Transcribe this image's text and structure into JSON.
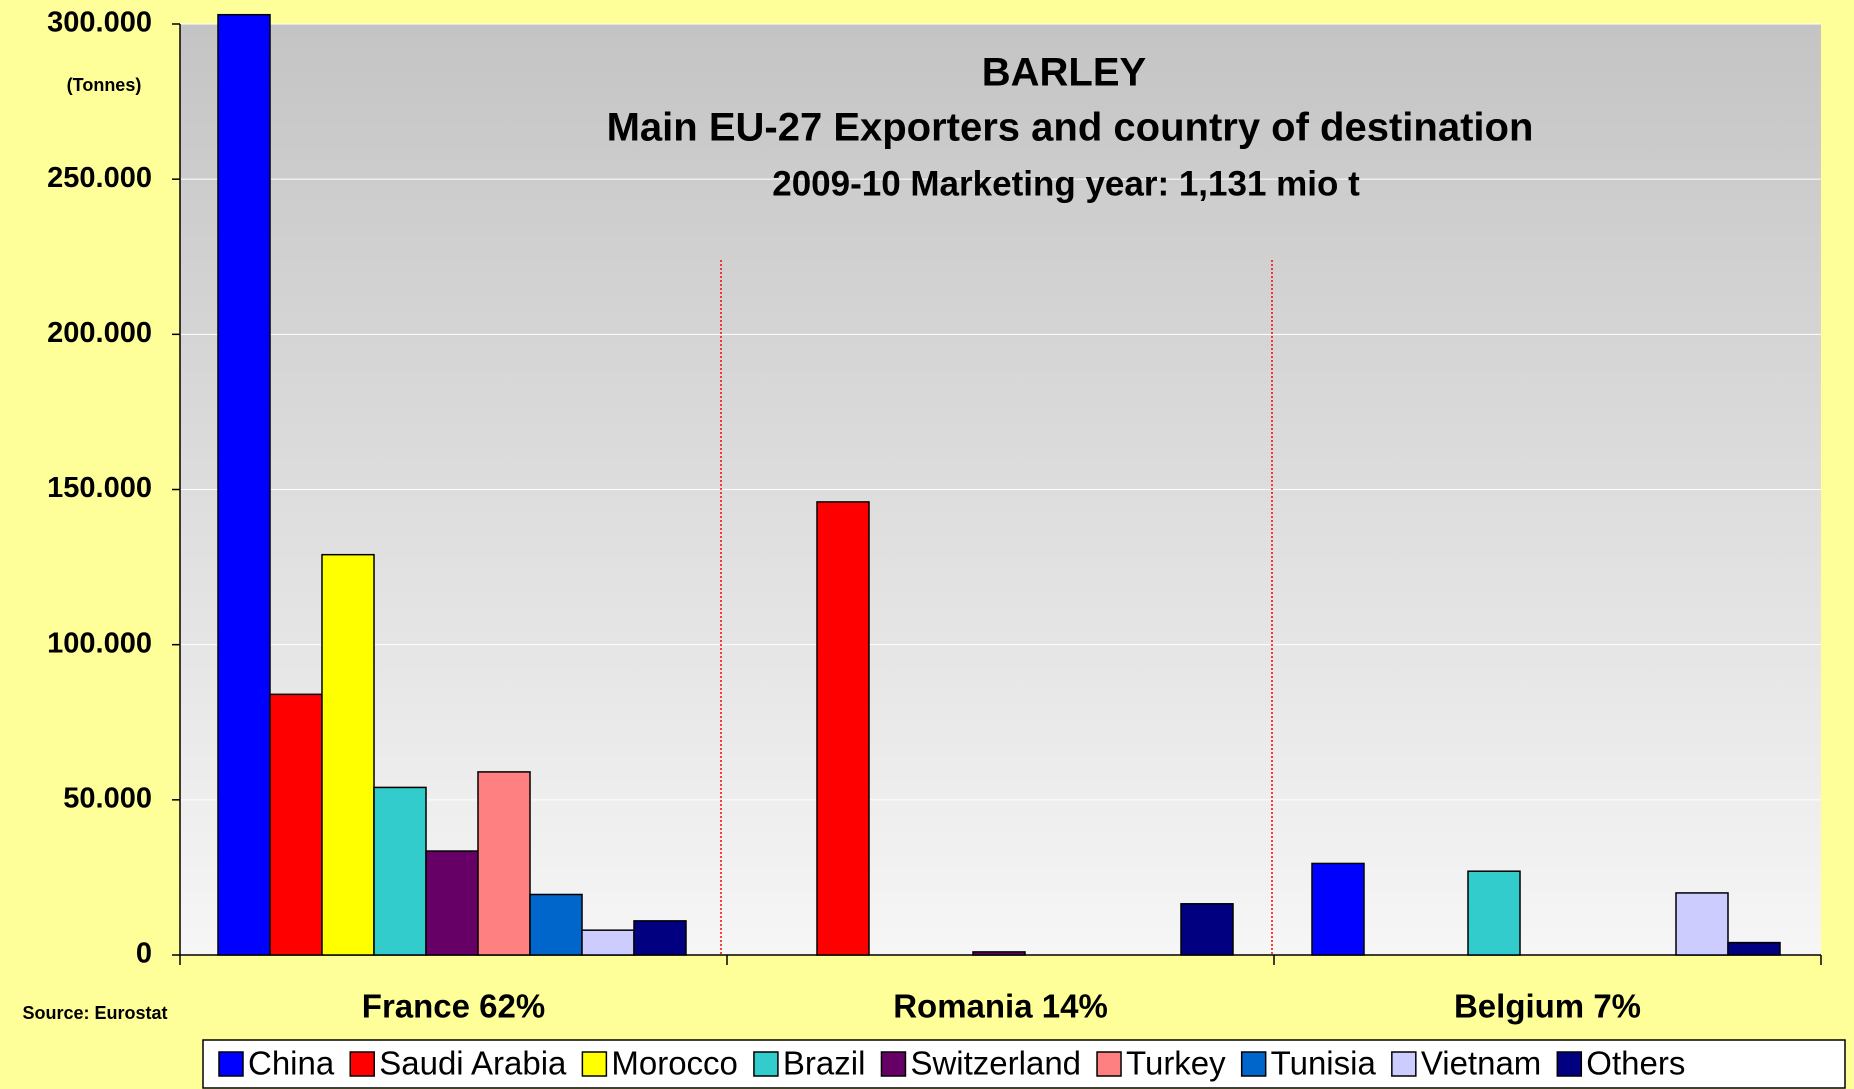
{
  "chart_data": {
    "type": "bar",
    "title": "BARLEY",
    "subtitle": "Main EU-27 Exporters and country of destination",
    "subtitle2": "2009-10 Marketing year: 1,131 mio t",
    "y_label": "(Tonnes)",
    "source": "Source: Eurostat",
    "categories": [
      "France  62%",
      "Romania  14%",
      "Belgium  7%"
    ],
    "series": [
      {
        "name": "China",
        "color": "#0000ff",
        "values": [
          303000,
          0,
          29500
        ]
      },
      {
        "name": "Saudi Arabia",
        "color": "#ff0000",
        "values": [
          84000,
          146000,
          0
        ]
      },
      {
        "name": "Morocco",
        "color": "#ffff00",
        "values": [
          129000,
          0,
          0
        ]
      },
      {
        "name": "Brazil",
        "color": "#33cccc",
        "values": [
          54000,
          0,
          27000
        ]
      },
      {
        "name": "Switzerland",
        "color": "#660066",
        "values": [
          33500,
          1000,
          0
        ]
      },
      {
        "name": "Turkey",
        "color": "#ff8080",
        "values": [
          59000,
          0,
          0
        ]
      },
      {
        "name": "Tunisia",
        "color": "#0066cc",
        "values": [
          19500,
          0,
          0
        ]
      },
      {
        "name": "Vietnam",
        "color": "#ccccff",
        "values": [
          8000,
          0,
          20000
        ]
      },
      {
        "name": "Others",
        "color": "#000080",
        "values": [
          11000,
          16500,
          4000
        ]
      }
    ],
    "ylim": [
      0,
      300000
    ],
    "yticks": [
      0,
      {
        "value": 50000,
        "label": "50.000"
      },
      {
        "value": 100000,
        "label": "100.000"
      },
      {
        "value": 150000,
        "label": "150.000"
      },
      {
        "value": 200000,
        "label": "200.000"
      },
      {
        "value": 250000,
        "label": "250.000"
      },
      {
        "value": 300000,
        "label": "300.000"
      }
    ],
    "grid": true,
    "legend": "bottom"
  }
}
